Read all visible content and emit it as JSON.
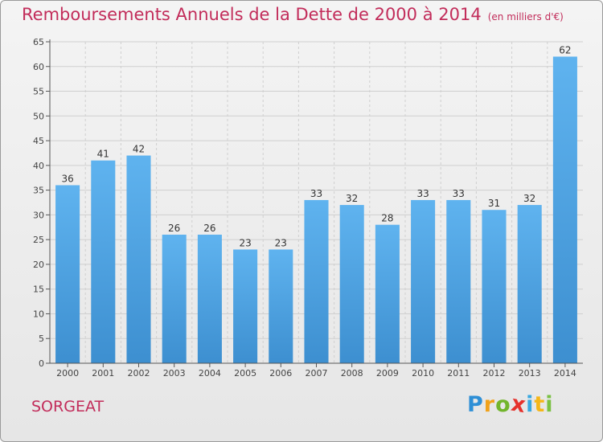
{
  "chart_data": {
    "type": "bar",
    "title": "Remboursements Annuels de la Dette de 2000 à 2014",
    "subtitle": "(en milliers d'€)",
    "categories": [
      "2000",
      "2001",
      "2002",
      "2003",
      "2004",
      "2005",
      "2006",
      "2007",
      "2008",
      "2009",
      "2010",
      "2011",
      "2012",
      "2013",
      "2014"
    ],
    "values": [
      36,
      41,
      42,
      26,
      26,
      23,
      23,
      33,
      32,
      28,
      33,
      33,
      31,
      32,
      62
    ],
    "xlabel": "",
    "ylabel": "",
    "ylim": [
      0,
      65
    ],
    "yticks": [
      0,
      5,
      10,
      15,
      20,
      25,
      30,
      35,
      40,
      45,
      50,
      55,
      60,
      65
    ],
    "grid": true,
    "bar_color": "#3d8fd0",
    "bar_color_light": "#5fb3ef"
  },
  "footer": {
    "place": "SORGEAT",
    "logo": "Proxiti",
    "logo_letters": [
      "P",
      "r",
      "o",
      "x",
      "i",
      "t",
      "i"
    ]
  },
  "colors": {
    "title": "#c22c5a",
    "axis": "#555555",
    "grid": "#cfcfcf"
  }
}
